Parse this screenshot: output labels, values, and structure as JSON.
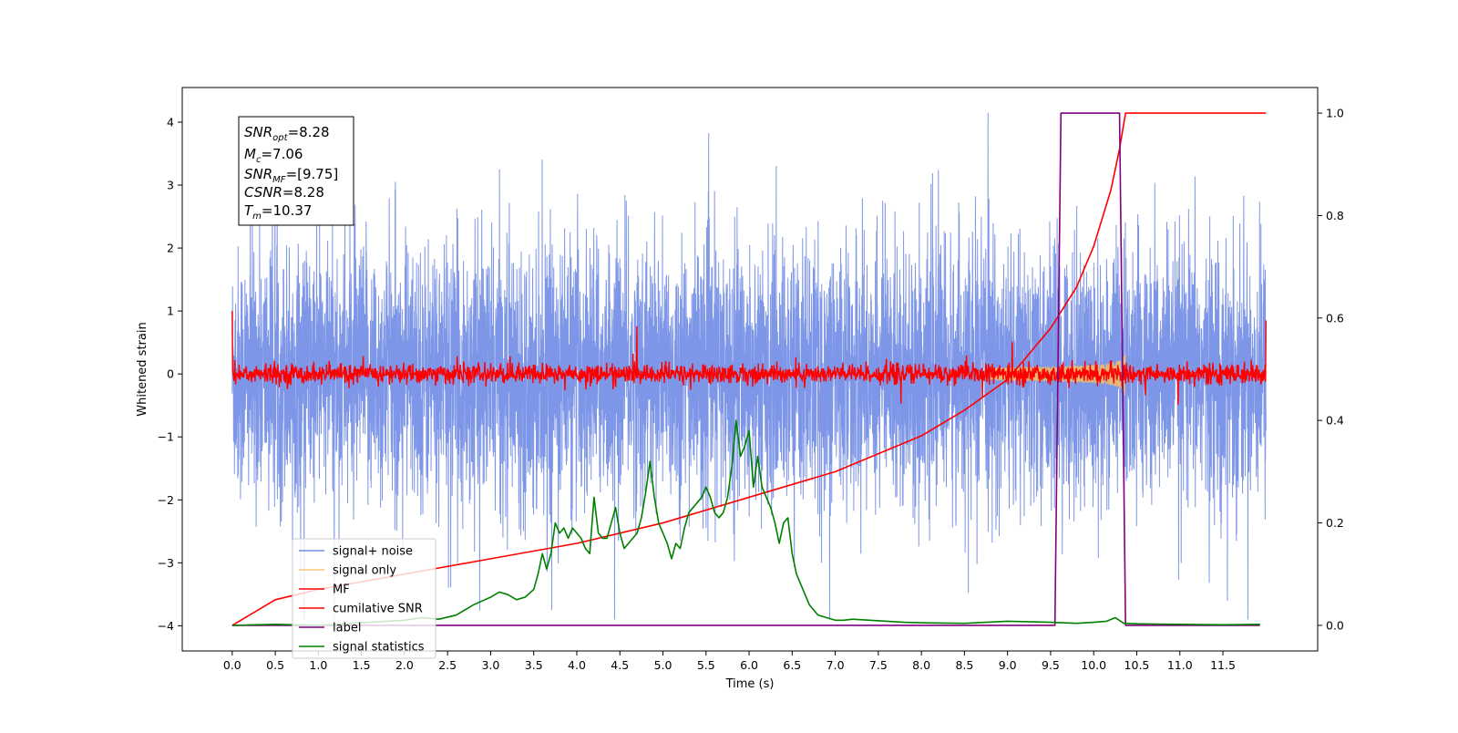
{
  "chart_data": {
    "type": "line",
    "title": "",
    "xlabel": "Time (s)",
    "ylabel": "Whitened strain",
    "ylabel_right": "",
    "xlim": [
      -0.58,
      12.6
    ],
    "ylim": [
      -4.4,
      4.55
    ],
    "ylim_right": [
      -0.05,
      1.05
    ],
    "grid": false,
    "legend_placement": "lower-left",
    "x_ticks": [
      "0.0",
      "0.5",
      "1.0",
      "1.5",
      "2.0",
      "2.5",
      "3.0",
      "3.5",
      "4.0",
      "4.5",
      "5.0",
      "5.5",
      "6.0",
      "6.5",
      "7.0",
      "7.5",
      "8.0",
      "8.5",
      "9.0",
      "9.5",
      "10.0",
      "10.5",
      "11.0",
      "11.5"
    ],
    "y_ticks_left": [
      "4",
      "3",
      "2",
      "1",
      "0",
      "−1",
      "−2",
      "−3",
      "−4"
    ],
    "y_ticks_right": [
      "1.0",
      "0.8",
      "0.6",
      "0.4",
      "0.2",
      "0.0"
    ],
    "annotations": {
      "snr_opt": {
        "name": "SNR",
        "sub": "opt",
        "value": "=8.28"
      },
      "mc": {
        "name": "M",
        "sub": "c",
        "value": "=7.06"
      },
      "snr_mf": {
        "name": "SNR",
        "sub": "MF",
        "value": "=[9.75]"
      },
      "csnr": {
        "name": "CSNR",
        "value": "=8.28"
      },
      "tm": {
        "name": "T",
        "sub": "m",
        "value": "=10.37"
      }
    },
    "series": [
      {
        "name": "signal+ noise",
        "axis": "left",
        "color": "#7790e6",
        "envelope_std": 1.0,
        "t_range": [
          0.0,
          12.0
        ]
      },
      {
        "name": "signal only",
        "axis": "left",
        "color": "#f5c060",
        "chirp_start": 8.8,
        "chirp_end": 10.37,
        "peak_amplitude": 0.85
      },
      {
        "name": "MF",
        "axis": "left",
        "color": "#ff0000",
        "noise_std": 0.08,
        "t_range": [
          0.0,
          12.0
        ]
      },
      {
        "name": "cumilative SNR",
        "axis": "right",
        "color": "#ff0000",
        "x": [
          0.0,
          0.5,
          1.0,
          2.0,
          3.0,
          4.0,
          5.0,
          6.0,
          7.0,
          8.0,
          8.5,
          9.0,
          9.5,
          9.8,
          10.0,
          10.2,
          10.3,
          10.37,
          12.0
        ],
        "values": [
          0.0,
          0.05,
          0.07,
          0.1,
          0.13,
          0.16,
          0.2,
          0.25,
          0.3,
          0.37,
          0.42,
          0.48,
          0.58,
          0.66,
          0.74,
          0.85,
          0.93,
          1.0,
          1.0
        ]
      },
      {
        "name": "label",
        "axis": "right",
        "color": "#800080",
        "x": [
          0.0,
          9.55,
          9.62,
          10.3,
          10.37,
          11.93
        ],
        "values": [
          0.0,
          0.0,
          1.0,
          1.0,
          0.0,
          0.0
        ]
      },
      {
        "name": "signal statistics",
        "axis": "right",
        "color": "#008000",
        "x": [
          0.0,
          0.5,
          1.0,
          1.5,
          2.0,
          2.2,
          2.4,
          2.6,
          2.8,
          3.0,
          3.1,
          3.2,
          3.3,
          3.4,
          3.5,
          3.55,
          3.6,
          3.65,
          3.7,
          3.75,
          3.8,
          3.85,
          3.9,
          3.95,
          4.0,
          4.05,
          4.1,
          4.15,
          4.2,
          4.25,
          4.3,
          4.35,
          4.4,
          4.45,
          4.5,
          4.55,
          4.6,
          4.65,
          4.7,
          4.75,
          4.8,
          4.85,
          4.9,
          4.95,
          5.0,
          5.05,
          5.1,
          5.15,
          5.2,
          5.25,
          5.3,
          5.35,
          5.4,
          5.45,
          5.5,
          5.55,
          5.6,
          5.65,
          5.7,
          5.75,
          5.8,
          5.85,
          5.9,
          5.95,
          6.0,
          6.05,
          6.1,
          6.15,
          6.2,
          6.25,
          6.3,
          6.35,
          6.4,
          6.45,
          6.5,
          6.55,
          6.6,
          6.65,
          6.7,
          6.8,
          6.9,
          7.0,
          7.1,
          7.2,
          7.4,
          7.6,
          7.8,
          8.0,
          8.5,
          9.0,
          9.5,
          9.8,
          10.0,
          10.15,
          10.25,
          10.35,
          10.5,
          11.0,
          11.5,
          11.93
        ],
        "values": [
          0.0,
          0.002,
          0.0,
          0.005,
          0.01,
          0.015,
          0.012,
          0.02,
          0.04,
          0.055,
          0.065,
          0.06,
          0.05,
          0.055,
          0.07,
          0.1,
          0.14,
          0.11,
          0.14,
          0.2,
          0.18,
          0.19,
          0.17,
          0.19,
          0.18,
          0.17,
          0.15,
          0.14,
          0.25,
          0.18,
          0.17,
          0.17,
          0.2,
          0.23,
          0.18,
          0.15,
          0.16,
          0.17,
          0.18,
          0.21,
          0.26,
          0.32,
          0.25,
          0.2,
          0.18,
          0.16,
          0.13,
          0.16,
          0.15,
          0.19,
          0.22,
          0.23,
          0.24,
          0.25,
          0.27,
          0.25,
          0.22,
          0.21,
          0.22,
          0.25,
          0.31,
          0.4,
          0.33,
          0.35,
          0.38,
          0.27,
          0.33,
          0.27,
          0.25,
          0.23,
          0.2,
          0.16,
          0.2,
          0.21,
          0.14,
          0.1,
          0.08,
          0.06,
          0.04,
          0.02,
          0.015,
          0.01,
          0.01,
          0.012,
          0.01,
          0.008,
          0.006,
          0.005,
          0.004,
          0.008,
          0.006,
          0.004,
          0.006,
          0.008,
          0.015,
          0.004,
          0.003,
          0.002,
          0.001,
          0.002
        ]
      }
    ]
  }
}
